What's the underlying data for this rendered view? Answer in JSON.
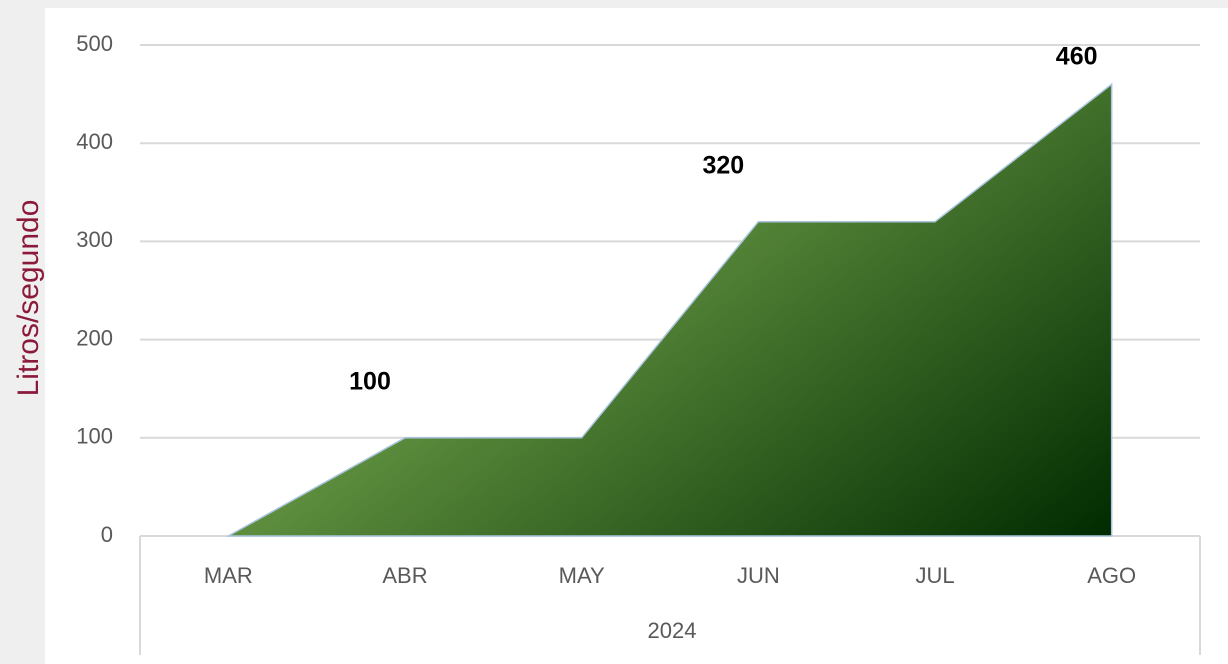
{
  "chart_data": {
    "type": "area",
    "y_label": "Litros/segundo",
    "group_label": "2024",
    "categories": [
      "MAR",
      "ABR",
      "MAY",
      "JUN",
      "JUL",
      "AGO"
    ],
    "values": [
      0,
      100,
      100,
      320,
      320,
      460
    ],
    "value_labels": [
      null,
      "100",
      null,
      "320",
      null,
      "460"
    ],
    "ylim": [
      0,
      500
    ],
    "yticks": [
      0,
      100,
      200,
      300,
      400,
      500
    ],
    "grid": true,
    "colors": [
      "#8cbf5c",
      "#002b00"
    ]
  }
}
